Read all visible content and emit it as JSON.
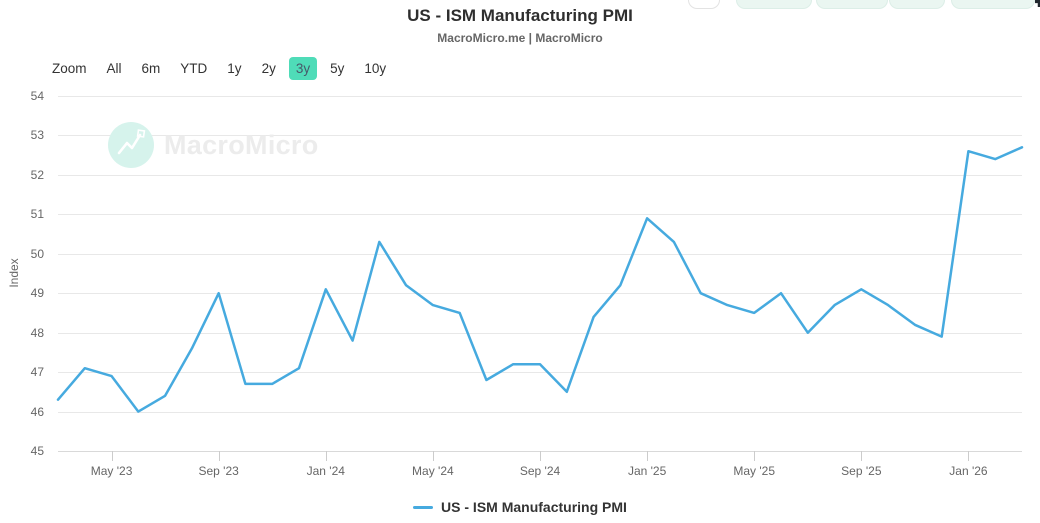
{
  "header": {
    "title": "US - ISM Manufacturing PMI",
    "subtitle": "MacroMicro.me | MacroMicro"
  },
  "toolbar": {
    "zoom_label": "Zoom",
    "ranges": [
      {
        "label": "All",
        "selected": false
      },
      {
        "label": "6m",
        "selected": false
      },
      {
        "label": "YTD",
        "selected": false
      },
      {
        "label": "1y",
        "selected": false
      },
      {
        "label": "2y",
        "selected": false
      },
      {
        "label": "3y",
        "selected": true
      },
      {
        "label": "5y",
        "selected": false
      },
      {
        "label": "10y",
        "selected": false
      }
    ]
  },
  "watermark": {
    "text": "MacroMicro"
  },
  "legend": {
    "label": "US - ISM Manufacturing PMI"
  },
  "colors": {
    "line": "#46aadf",
    "accent_selected_range": "#4fdcb8",
    "grid": "#e8e8e8",
    "axis_text": "#666666",
    "title_text": "#2e2e2e",
    "watermark_circle": "#d6f3ec",
    "watermark_text": "#ececec"
  },
  "chart_data": {
    "type": "line",
    "title": "US - ISM Manufacturing PMI",
    "series_name": "US - ISM Manufacturing PMI",
    "xlabel": "",
    "ylabel": "Index",
    "ylim": [
      45,
      54
    ],
    "y_ticks": [
      45,
      46,
      47,
      48,
      49,
      50,
      51,
      52,
      53,
      54
    ],
    "grid": "horizontal",
    "legend_position": "bottom",
    "x": [
      "2023-03",
      "2023-04",
      "2023-05",
      "2023-06",
      "2023-07",
      "2023-08",
      "2023-09",
      "2023-10",
      "2023-11",
      "2023-12",
      "2024-01",
      "2024-02",
      "2024-03",
      "2024-04",
      "2024-05",
      "2024-06",
      "2024-07",
      "2024-08",
      "2024-09",
      "2024-10",
      "2024-11",
      "2024-12",
      "2025-01",
      "2025-02",
      "2025-03",
      "2025-04",
      "2025-05",
      "2025-06",
      "2025-07",
      "2025-08",
      "2025-09",
      "2025-10",
      "2025-11",
      "2025-12",
      "2026-01",
      "2026-02",
      "2026-03"
    ],
    "values": [
      46.3,
      47.1,
      46.9,
      46.0,
      46.4,
      47.6,
      49.0,
      46.7,
      46.7,
      47.1,
      49.1,
      47.8,
      50.3,
      49.2,
      48.7,
      48.5,
      46.8,
      47.2,
      47.2,
      46.5,
      48.4,
      49.2,
      50.9,
      50.3,
      49.0,
      48.7,
      48.5,
      49.0,
      48.0,
      48.7,
      49.1,
      48.7,
      48.2,
      47.9,
      52.6,
      52.4,
      52.7
    ],
    "x_ticks": [
      {
        "label": "May '23",
        "index": 2
      },
      {
        "label": "Sep '23",
        "index": 6
      },
      {
        "label": "Jan '24",
        "index": 10
      },
      {
        "label": "May '24",
        "index": 14
      },
      {
        "label": "Sep '24",
        "index": 18
      },
      {
        "label": "Jan '25",
        "index": 22
      },
      {
        "label": "May '25",
        "index": 26
      },
      {
        "label": "Sep '25",
        "index": 30
      },
      {
        "label": "Jan '26",
        "index": 34
      }
    ]
  }
}
